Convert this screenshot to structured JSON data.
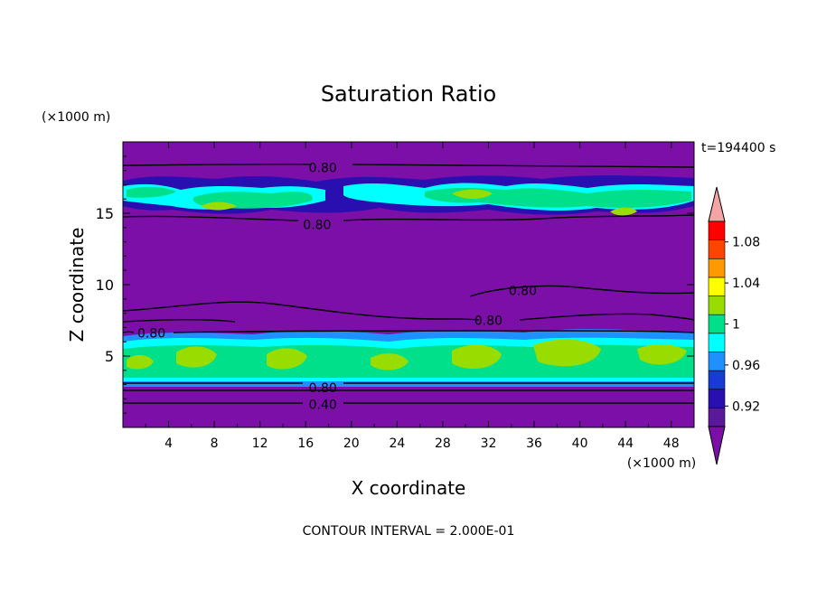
{
  "chart_data": {
    "type": "heatmap",
    "title": "Saturation Ratio",
    "xlabel": "X coordinate",
    "ylabel": "Z coordinate",
    "x_unit": "(×1000 m)",
    "y_unit": "(×1000 m)",
    "time_label": "t=194400 s",
    "footer": "CONTOUR INTERVAL = 2.000E-01",
    "xlim": [
      0,
      50
    ],
    "ylim": [
      0,
      20
    ],
    "x_ticks": [
      "4",
      "8",
      "12",
      "16",
      "20",
      "24",
      "28",
      "32",
      "36",
      "40",
      "44",
      "48"
    ],
    "y_ticks": [
      "5",
      "10",
      "15"
    ],
    "colorbar": {
      "levels": [
        0.9,
        0.92,
        0.94,
        0.96,
        0.98,
        1.0,
        1.02,
        1.04,
        1.06,
        1.08,
        1.1
      ],
      "labels": [
        "0.92",
        "0.96",
        "1",
        "1.04",
        "1.08"
      ],
      "colors": [
        "#5a189a",
        "#2a0fb0",
        "#1a3ad8",
        "#1e90ff",
        "#00ffff",
        "#00e08a",
        "#99dd00",
        "#ffff00",
        "#ff9900",
        "#ff4400",
        "#ff0000"
      ],
      "under_color": "#7b0fa8",
      "over_color": "#f4a4a4"
    },
    "contour_labels": [
      {
        "text": "0.80",
        "x": 17.5,
        "z": 18.2
      },
      {
        "text": "0.80",
        "x": 17.0,
        "z": 14.2
      },
      {
        "text": "0.80",
        "x": 35.0,
        "z": 9.6
      },
      {
        "text": "0.80",
        "x": 32.0,
        "z": 7.5
      },
      {
        "text": "0.80",
        "x": 2.5,
        "z": 6.6
      },
      {
        "text": "0.80",
        "x": 17.5,
        "z": 2.8
      },
      {
        "text": "0.40",
        "x": 17.5,
        "z": 1.6
      }
    ]
  }
}
